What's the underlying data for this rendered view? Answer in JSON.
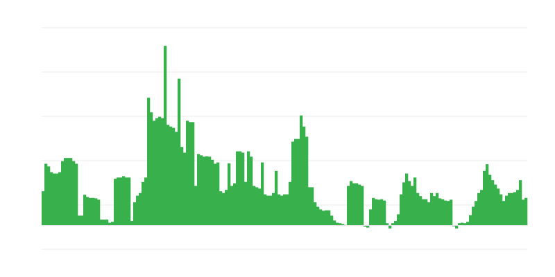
{
  "chart_data": {
    "type": "bar",
    "title": "",
    "xlabel": "",
    "ylabel": "",
    "grid": true,
    "legend": "none",
    "ylim": [
      -0.54,
      4.46
    ],
    "gridlines": [
      4.46,
      3.46,
      2.46,
      1.46,
      0.46,
      -0.54
    ],
    "bar_color": "#38b14c",
    "grid_color": "#ececec",
    "values": [
      0.77,
      1.39,
      1.33,
      1.2,
      1.17,
      1.17,
      1.2,
      1.45,
      1.52,
      1.52,
      1.52,
      1.45,
      1.39,
      0.22,
      0.22,
      0.69,
      0.64,
      0.62,
      0.62,
      0.61,
      0.58,
      0.13,
      0.13,
      0.13,
      0.06,
      0.08,
      1.05,
      1.08,
      1.08,
      1.11,
      1.08,
      1.08,
      0.1,
      0.52,
      0.67,
      0.73,
      0.98,
      1.08,
      2.88,
      2.55,
      2.36,
      2.42,
      2.45,
      2.42,
      4.05,
      2.27,
      2.23,
      2.2,
      2.11,
      3.31,
      1.77,
      1.64,
      2.36,
      2.33,
      2.33,
      0.89,
      1.61,
      1.58,
      1.55,
      1.56,
      1.55,
      1.48,
      1.39,
      1.42,
      0.77,
      0.73,
      0.8,
      1.4,
      0.89,
      0.95,
      1.67,
      1.67,
      1.64,
      0.98,
      1.67,
      1.55,
      0.89,
      0.86,
      0.83,
      1.42,
      0.7,
      0.67,
      0.67,
      0.73,
      1.23,
      0.7,
      0.67,
      0.7,
      0.7,
      0.98,
      1.89,
      1.95,
      1.95,
      2.48,
      2.23,
      2.0,
      0.86,
      0.86,
      0.52,
      0.42,
      0.36,
      0.33,
      0.34,
      0.34,
      0.22,
      0.11,
      0.06,
      0.05,
      0.03,
      0.01,
      0.89,
      1.0,
      0.95,
      0.95,
      0.92,
      0.89,
      -0.03,
      -0.05,
      0.36,
      0.62,
      0.59,
      0.58,
      0.59,
      0.56,
      0.05,
      -0.07,
      0.05,
      0.1,
      0.25,
      0.7,
      0.97,
      1.17,
      1.0,
      0.89,
      1.08,
      0.73,
      0.66,
      0.59,
      0.59,
      0.52,
      0.73,
      0.66,
      0.73,
      0.61,
      0.59,
      0.56,
      0.55,
      0.58,
      -0.02,
      -0.07,
      0.05,
      0.06,
      0.05,
      0.08,
      0.23,
      0.42,
      0.55,
      0.73,
      0.8,
      1.23,
      1.38,
      1.14,
      1.02,
      0.92,
      0.83,
      0.7,
      0.55,
      0.67,
      0.73,
      0.73,
      0.75,
      0.8,
      1.02,
      0.58,
      0.62
    ]
  }
}
